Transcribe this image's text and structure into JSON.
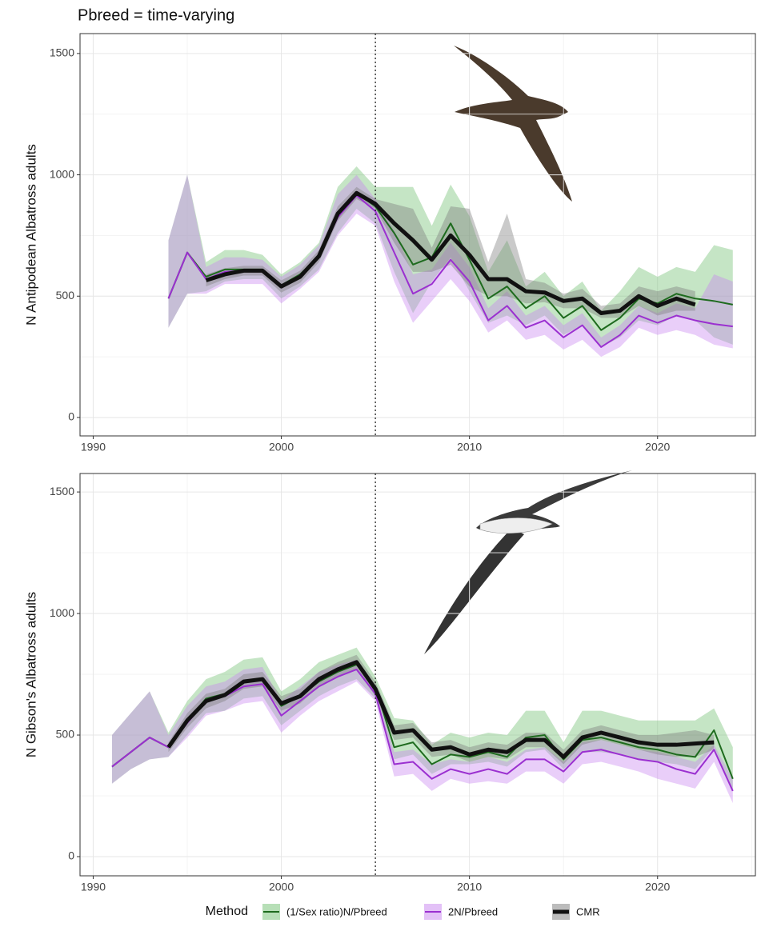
{
  "title": "Pbreed = time-varying",
  "legend_title": "Method",
  "chart_data": [
    {
      "type": "line",
      "y_label": "N Antipodean Albatross adults",
      "x": [
        1994,
        1995,
        1996,
        1997,
        1998,
        1999,
        2000,
        2001,
        2002,
        2003,
        2004,
        2005,
        2006,
        2007,
        2008,
        2009,
        2010,
        2011,
        2012,
        2013,
        2014,
        2015,
        2016,
        2017,
        2018,
        2019,
        2020,
        2021,
        2022,
        2023,
        2024
      ],
      "xlim": [
        1989.3,
        2025.2
      ],
      "xticks": [
        1990,
        2000,
        2010,
        2020
      ],
      "minor_xticks": [
        1995,
        2005,
        2015,
        2025
      ],
      "ylim": [
        -76,
        1582
      ],
      "yticks": [
        0,
        500,
        1000,
        1500
      ],
      "minor_yticks": [
        250,
        750,
        1250
      ],
      "vline": 2005,
      "grid": true,
      "series": [
        {
          "name": "(1/Sex ratio)N/Pbreed",
          "color": "#1e6b1e",
          "band_color": "#6fbf6f",
          "values": [
            490,
            680,
            580,
            610,
            610,
            610,
            545,
            590,
            665,
            835,
            925,
            870,
            760,
            630,
            660,
            800,
            650,
            490,
            540,
            450,
            500,
            410,
            460,
            360,
            410,
            490,
            470,
            510,
            490,
            480,
            465
          ],
          "lower": [
            370,
            510,
            520,
            560,
            570,
            570,
            490,
            540,
            610,
            760,
            860,
            800,
            600,
            430,
            560,
            660,
            520,
            390,
            420,
            380,
            420,
            340,
            380,
            290,
            330,
            400,
            380,
            420,
            400,
            330,
            300
          ],
          "upper": [
            730,
            1000,
            640,
            690,
            690,
            670,
            590,
            640,
            720,
            950,
            1035,
            950,
            950,
            950,
            790,
            960,
            830,
            600,
            730,
            540,
            600,
            500,
            560,
            440,
            520,
            620,
            580,
            620,
            600,
            710,
            690
          ]
        },
        {
          "name": "2N/Pbreed",
          "color": "#9b30d0",
          "band_color": "#c784f0",
          "values": [
            490,
            680,
            570,
            600,
            605,
            605,
            535,
            580,
            660,
            825,
            915,
            850,
            680,
            510,
            550,
            650,
            560,
            400,
            460,
            370,
            400,
            330,
            380,
            290,
            340,
            420,
            390,
            420,
            400,
            385,
            375
          ],
          "lower": [
            370,
            510,
            510,
            550,
            550,
            550,
            470,
            530,
            600,
            750,
            840,
            790,
            560,
            390,
            480,
            570,
            480,
            350,
            400,
            320,
            340,
            280,
            320,
            250,
            290,
            370,
            340,
            360,
            340,
            300,
            285
          ],
          "upper": [
            730,
            1000,
            620,
            660,
            660,
            650,
            580,
            630,
            710,
            920,
            1000,
            900,
            770,
            590,
            610,
            720,
            620,
            450,
            520,
            420,
            460,
            380,
            430,
            330,
            380,
            460,
            430,
            470,
            450,
            590,
            560
          ]
        },
        {
          "name": "CMR",
          "color": "#111111",
          "band_color": "#7a7a7a",
          "thick": true,
          "values": [
            null,
            null,
            565,
            590,
            605,
            605,
            540,
            580,
            665,
            840,
            925,
            880,
            800,
            730,
            650,
            750,
            670,
            570,
            570,
            520,
            515,
            480,
            490,
            430,
            440,
            500,
            460,
            490,
            465,
            null,
            null
          ],
          "lower": [
            null,
            null,
            540,
            570,
            585,
            585,
            515,
            555,
            640,
            810,
            900,
            860,
            720,
            600,
            600,
            630,
            540,
            500,
            500,
            470,
            475,
            450,
            450,
            410,
            410,
            460,
            420,
            440,
            440,
            null,
            null
          ],
          "upper": [
            null,
            null,
            590,
            615,
            625,
            625,
            565,
            605,
            690,
            870,
            950,
            900,
            880,
            860,
            700,
            870,
            860,
            640,
            840,
            570,
            555,
            510,
            530,
            460,
            470,
            540,
            520,
            540,
            520,
            null,
            null
          ]
        }
      ]
    },
    {
      "type": "line",
      "y_label": "N Gibson's Albatross adults",
      "x": [
        1991,
        1992,
        1993,
        1994,
        1995,
        1996,
        1997,
        1998,
        1999,
        2000,
        2001,
        2002,
        2003,
        2004,
        2005,
        2006,
        2007,
        2008,
        2009,
        2010,
        2011,
        2012,
        2013,
        2014,
        2015,
        2016,
        2017,
        2018,
        2019,
        2020,
        2021,
        2022,
        2023,
        2024
      ],
      "xlim": [
        1989.3,
        2025.2
      ],
      "xticks": [
        1990,
        2000,
        2010,
        2020
      ],
      "minor_xticks": [
        1995,
        2005,
        2015,
        2025
      ],
      "ylim": [
        -79,
        1576
      ],
      "yticks": [
        0,
        500,
        1000,
        1500
      ],
      "minor_yticks": [
        250,
        750,
        1250
      ],
      "vline": 2005,
      "grid": true,
      "series": [
        {
          "color": "#1e6b1e",
          "band_color": "#6fbf6f",
          "values": [
            370,
            430,
            490,
            450,
            560,
            650,
            670,
            720,
            730,
            620,
            660,
            720,
            760,
            790,
            700,
            450,
            470,
            380,
            420,
            410,
            430,
            410,
            490,
            500,
            400,
            480,
            490,
            470,
            450,
            440,
            420,
            410,
            520,
            320
          ],
          "lower": [
            300,
            360,
            400,
            410,
            500,
            590,
            600,
            650,
            660,
            540,
            600,
            660,
            700,
            730,
            650,
            400,
            420,
            340,
            380,
            380,
            390,
            370,
            430,
            440,
            360,
            430,
            430,
            420,
            400,
            390,
            380,
            360,
            450,
            270
          ],
          "upper": [
            500,
            590,
            680,
            510,
            640,
            730,
            760,
            810,
            820,
            680,
            730,
            800,
            830,
            860,
            740,
            570,
            560,
            460,
            510,
            490,
            510,
            500,
            600,
            600,
            470,
            600,
            600,
            580,
            560,
            560,
            560,
            560,
            610,
            450
          ]
        },
        {
          "color": "#9b30d0",
          "band_color": "#c784f0",
          "values": [
            370,
            430,
            490,
            450,
            550,
            640,
            660,
            700,
            710,
            580,
            640,
            700,
            740,
            770,
            670,
            380,
            390,
            320,
            360,
            340,
            360,
            340,
            400,
            400,
            350,
            430,
            440,
            420,
            400,
            390,
            360,
            340,
            440,
            270
          ],
          "lower": [
            300,
            360,
            400,
            410,
            490,
            580,
            600,
            630,
            640,
            510,
            580,
            640,
            680,
            720,
            640,
            330,
            340,
            270,
            320,
            300,
            310,
            300,
            350,
            350,
            300,
            380,
            390,
            370,
            350,
            320,
            300,
            280,
            390,
            220
          ],
          "upper": [
            500,
            590,
            680,
            500,
            620,
            700,
            720,
            770,
            780,
            640,
            700,
            760,
            790,
            810,
            700,
            430,
            440,
            380,
            400,
            390,
            410,
            390,
            440,
            450,
            390,
            470,
            480,
            460,
            440,
            430,
            410,
            390,
            460,
            320
          ]
        },
        {
          "color": "#111111",
          "band_color": "#7a7a7a",
          "thick": true,
          "values": [
            null,
            null,
            null,
            450,
            560,
            640,
            665,
            720,
            730,
            630,
            660,
            730,
            770,
            800,
            690,
            510,
            520,
            440,
            450,
            420,
            440,
            430,
            480,
            480,
            410,
            490,
            510,
            490,
            470,
            460,
            460,
            465,
            470,
            null
          ],
          "lower": [
            null,
            null,
            null,
            430,
            530,
            610,
            640,
            690,
            700,
            600,
            630,
            700,
            740,
            770,
            660,
            480,
            490,
            410,
            420,
            390,
            410,
            400,
            450,
            450,
            380,
            460,
            480,
            460,
            440,
            420,
            410,
            410,
            440,
            null
          ],
          "upper": [
            null,
            null,
            null,
            470,
            590,
            670,
            690,
            750,
            760,
            660,
            690,
            760,
            800,
            830,
            720,
            540,
            550,
            470,
            480,
            450,
            470,
            460,
            510,
            510,
            440,
            520,
            540,
            520,
            500,
            500,
            510,
            520,
            500,
            null
          ]
        }
      ]
    }
  ]
}
